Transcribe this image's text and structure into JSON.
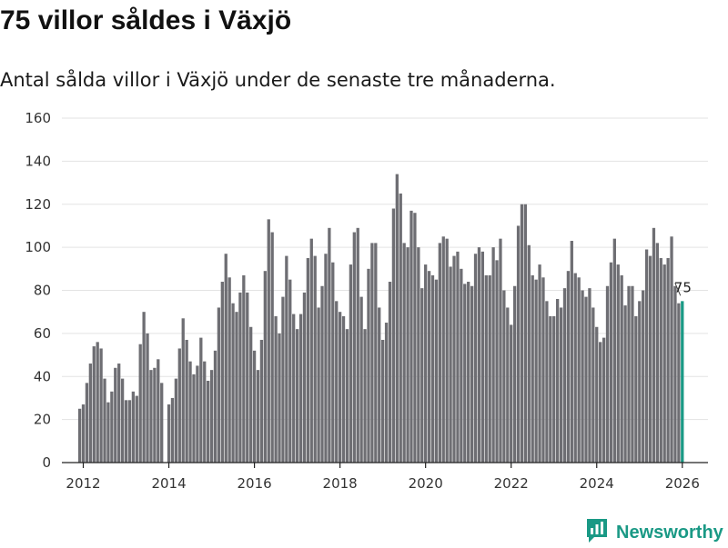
{
  "header": {
    "title": "75 villor såldes i Växjö",
    "subtitle": "Antal sålda villor i Växjö under de senaste tre månaderna."
  },
  "brand": {
    "name": "Newsworthy",
    "accent": "#1a9985",
    "bar_color": "#6e6e73"
  },
  "chart_data": {
    "type": "bar",
    "title": "75 villor såldes i Växjö",
    "subtitle": "Antal sålda villor i Växjö under de senaste tre månaderna.",
    "xlabel": "",
    "ylabel": "",
    "ylim": [
      0,
      160
    ],
    "yticks": [
      0,
      20,
      40,
      60,
      80,
      100,
      120,
      140,
      160
    ],
    "xticks": [
      "2012",
      "2014",
      "2016",
      "2018",
      "2020",
      "2022",
      "2024",
      "2026"
    ],
    "x_start": "2011-12",
    "x_end": "2026-01",
    "grid": true,
    "annotation": {
      "label": "75",
      "target": "last"
    },
    "values": [
      25,
      27,
      37,
      46,
      54,
      56,
      53,
      39,
      28,
      33,
      44,
      46,
      39,
      29,
      29,
      33,
      31,
      55,
      70,
      60,
      43,
      44,
      48,
      37,
      0,
      27,
      30,
      39,
      53,
      67,
      57,
      47,
      41,
      45,
      58,
      47,
      38,
      43,
      52,
      72,
      84,
      97,
      86,
      74,
      70,
      79,
      87,
      79,
      63,
      52,
      43,
      57,
      89,
      113,
      107,
      68,
      60,
      77,
      96,
      85,
      69,
      62,
      69,
      79,
      95,
      104,
      96,
      72,
      82,
      97,
      109,
      93,
      75,
      70,
      68,
      62,
      92,
      107,
      109,
      77,
      62,
      90,
      102,
      102,
      72,
      57,
      65,
      84,
      118,
      134,
      125,
      102,
      100,
      117,
      116,
      100,
      81,
      92,
      89,
      87,
      85,
      102,
      105,
      104,
      91,
      96,
      98,
      90,
      83,
      84,
      82,
      97,
      100,
      98,
      87,
      87,
      100,
      94,
      104,
      80,
      72,
      64,
      82,
      110,
      120,
      120,
      101,
      87,
      85,
      92,
      86,
      75,
      68,
      68,
      76,
      72,
      81,
      89,
      103,
      88,
      86,
      80,
      77,
      81,
      72,
      63,
      56,
      58,
      82,
      93,
      104,
      92,
      87,
      73,
      82,
      82,
      68,
      75,
      80,
      99,
      96,
      109,
      102,
      95,
      92,
      95,
      105,
      82,
      74,
      75
    ]
  }
}
